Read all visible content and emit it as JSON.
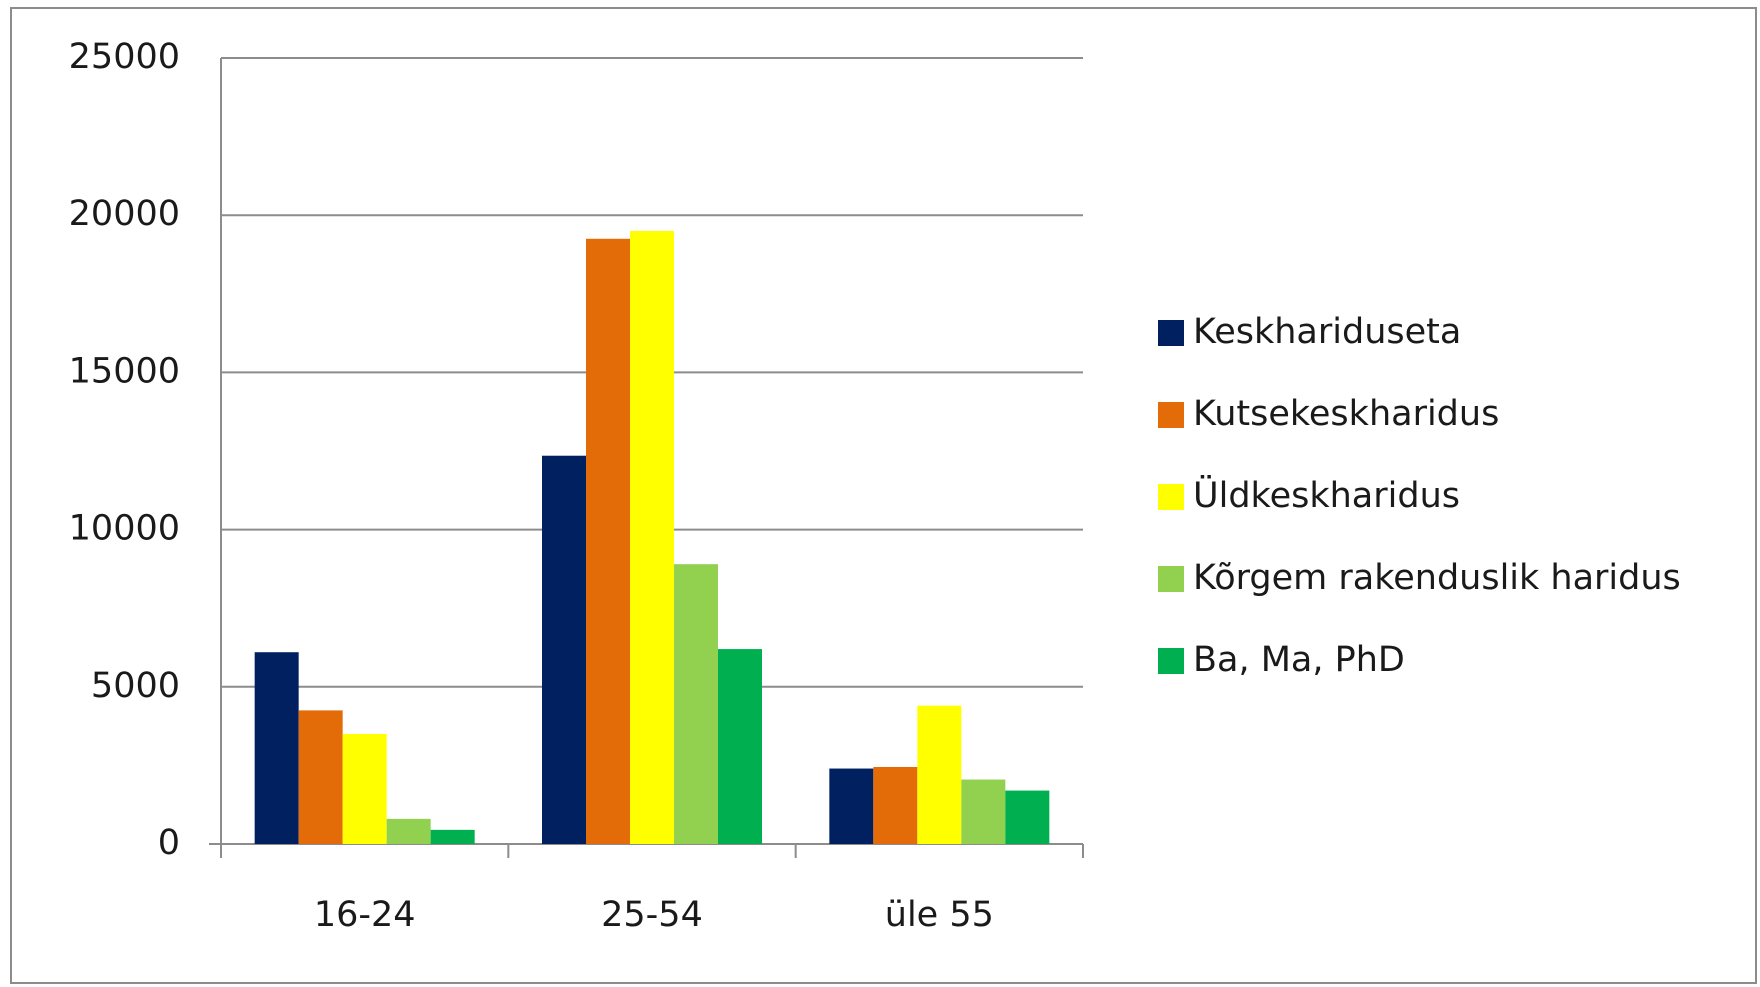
{
  "chart_data": {
    "type": "bar",
    "categories": [
      "16-24",
      "25-54",
      "üle 55"
    ],
    "series": [
      {
        "name": "Keskhariduseta",
        "color": "#002060",
        "values": [
          6100,
          12350,
          2400
        ]
      },
      {
        "name": "Kutsekeskharidus",
        "color": "#e36c09",
        "values": [
          4250,
          19250,
          2450
        ]
      },
      {
        "name": "Üldkeskharidus",
        "color": "#ffff00",
        "values": [
          3500,
          19500,
          4400
        ]
      },
      {
        "name": "Kõrgem rakenduslik haridus",
        "color": "#92d050",
        "values": [
          800,
          8900,
          2050
        ]
      },
      {
        "name": "Ba, Ma, PhD",
        "color": "#00b050",
        "values": [
          450,
          6200,
          1700
        ]
      }
    ],
    "ylim": [
      0,
      25000
    ],
    "yticks": [
      0,
      5000,
      10000,
      15000,
      20000,
      25000
    ],
    "grid": true,
    "legend": "right"
  }
}
